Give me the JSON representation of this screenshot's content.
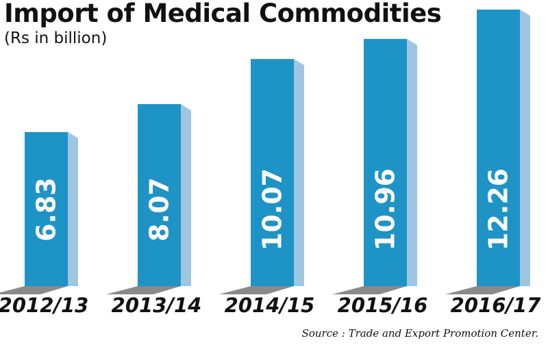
{
  "chart_data": {
    "type": "bar",
    "title": "Import of Medical Commodities",
    "subtitle": "(Rs in billion)",
    "categories": [
      "2012/13",
      "2013/14",
      "2014/15",
      "2015/16",
      "2016/17"
    ],
    "values": [
      6.83,
      8.07,
      10.07,
      10.96,
      12.26
    ],
    "value_labels": [
      "6.83",
      "8.07",
      "10.07",
      "10.96",
      "12.26"
    ],
    "source": "Source : Trade and Export Promotion Center.",
    "xlabel": "",
    "ylabel": "",
    "ylim": [
      0,
      12.26
    ],
    "grid": false,
    "legend": "none",
    "colors": {
      "bar_front": "#1e93c6",
      "bar_side": "#9ec6e2",
      "shadow": "#8a8a8a",
      "value_text": "#ffffff",
      "text": "#111111"
    }
  }
}
